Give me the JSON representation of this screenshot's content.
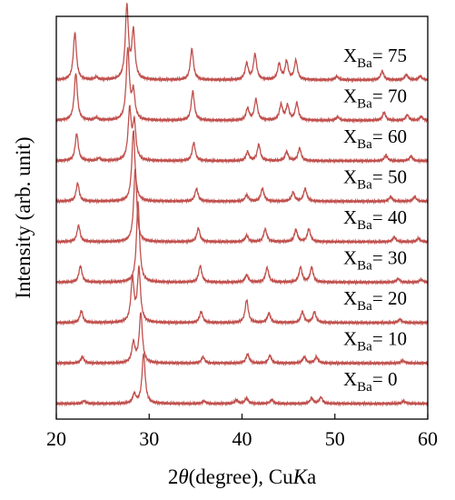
{
  "chart_data": {
    "type": "line",
    "xlabel_prefix": "2",
    "xlabel_symbol": "θ",
    "xlabel_rest": "(degree), Cu",
    "xlabel_italic": "K",
    "xlabel_end": "a",
    "ylabel": "Intensity (arb. unit)",
    "xlim": [
      20,
      60
    ],
    "xticks": [
      "20",
      "30",
      "40",
      "50",
      "60"
    ],
    "line_color": "#c0504d",
    "grid": false,
    "label_prefix": "X",
    "label_subscript": "Ba",
    "series": [
      {
        "name": "75",
        "peaks": [
          [
            22.0,
            52
          ],
          [
            24.3,
            3
          ],
          [
            27.6,
            80
          ],
          [
            28.3,
            52
          ],
          [
            34.6,
            34
          ],
          [
            40.5,
            18
          ],
          [
            41.4,
            28
          ],
          [
            44.0,
            17
          ],
          [
            44.8,
            20
          ],
          [
            45.8,
            21
          ],
          [
            50.2,
            4
          ],
          [
            55.1,
            10
          ],
          [
            57.7,
            6
          ],
          [
            59.2,
            4
          ]
        ]
      },
      {
        "name": "70",
        "peaks": [
          [
            22.1,
            52
          ],
          [
            24.3,
            3
          ],
          [
            27.7,
            78
          ],
          [
            28.3,
            30
          ],
          [
            34.7,
            32
          ],
          [
            40.6,
            13
          ],
          [
            41.5,
            23
          ],
          [
            44.2,
            17
          ],
          [
            44.9,
            16
          ],
          [
            45.9,
            19
          ],
          [
            50.3,
            4
          ],
          [
            55.3,
            9
          ],
          [
            57.8,
            6
          ],
          [
            59.3,
            4
          ]
        ]
      },
      {
        "name": "60",
        "peaks": [
          [
            22.2,
            30
          ],
          [
            24.6,
            3
          ],
          [
            27.9,
            55
          ],
          [
            28.4,
            40
          ],
          [
            34.8,
            20
          ],
          [
            40.6,
            10
          ],
          [
            41.8,
            18
          ],
          [
            44.8,
            10
          ],
          [
            46.2,
            14
          ],
          [
            55.5,
            6
          ],
          [
            58.2,
            5
          ]
        ]
      },
      {
        "name": "50",
        "peaks": [
          [
            22.3,
            20
          ],
          [
            28.3,
            78
          ],
          [
            35.1,
            14
          ],
          [
            40.5,
            7
          ],
          [
            42.2,
            14
          ],
          [
            45.5,
            10
          ],
          [
            46.8,
            14
          ],
          [
            56.0,
            5
          ],
          [
            58.6,
            5
          ]
        ]
      },
      {
        "name": "40",
        "peaks": [
          [
            22.4,
            18
          ],
          [
            28.5,
            80
          ],
          [
            35.3,
            15
          ],
          [
            40.5,
            7
          ],
          [
            42.5,
            14
          ],
          [
            45.8,
            13
          ],
          [
            47.2,
            14
          ],
          [
            56.4,
            5
          ],
          [
            59.0,
            4
          ]
        ]
      },
      {
        "name": "30",
        "peaks": [
          [
            22.6,
            18
          ],
          [
            28.8,
            88
          ],
          [
            35.5,
            18
          ],
          [
            40.5,
            8
          ],
          [
            42.7,
            16
          ],
          [
            46.3,
            16
          ],
          [
            47.5,
            16
          ],
          [
            56.8,
            4
          ],
          [
            59.3,
            3
          ]
        ]
      },
      {
        "name": "20",
        "peaks": [
          [
            22.7,
            13
          ],
          [
            28.2,
            48
          ],
          [
            28.9,
            58
          ],
          [
            35.6,
            12
          ],
          [
            40.5,
            25
          ],
          [
            42.9,
            10
          ],
          [
            46.5,
            12
          ],
          [
            47.8,
            12
          ],
          [
            57.0,
            4
          ]
        ]
      },
      {
        "name": "10",
        "peaks": [
          [
            22.8,
            7
          ],
          [
            28.3,
            22
          ],
          [
            29.1,
            55
          ],
          [
            35.8,
            7
          ],
          [
            40.6,
            10
          ],
          [
            43.0,
            8
          ],
          [
            46.7,
            7
          ],
          [
            48.0,
            7
          ],
          [
            57.3,
            3
          ]
        ]
      },
      {
        "name": "0",
        "peaks": [
          [
            23.0,
            3
          ],
          [
            28.4,
            10
          ],
          [
            29.4,
            55
          ],
          [
            35.9,
            3
          ],
          [
            39.4,
            4
          ],
          [
            40.5,
            6
          ],
          [
            43.2,
            4
          ],
          [
            47.5,
            6
          ],
          [
            48.5,
            7
          ],
          [
            57.4,
            3
          ]
        ]
      }
    ]
  }
}
